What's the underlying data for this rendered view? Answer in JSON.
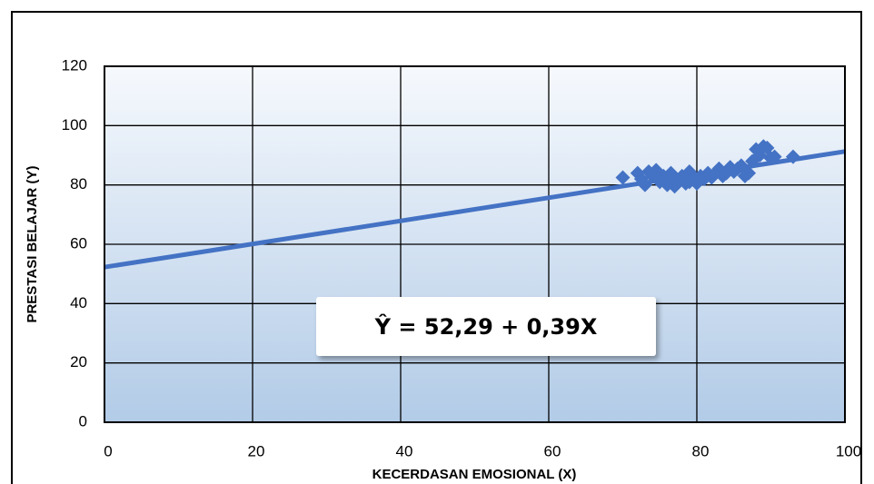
{
  "chart_data": {
    "type": "scatter",
    "xlabel": "KECERDASAN EMOSIONAL (X)",
    "ylabel": "PRESTASI BELAJAR (Y)",
    "annotation": "Ŷ  = 52,29 + 0,39X",
    "trendline": {
      "intercept": 52.29,
      "slope": 0.39
    },
    "color": "#4472c4",
    "grid": true,
    "xlim": [
      0,
      100
    ],
    "xticks": [
      0,
      20,
      40,
      60,
      80,
      100
    ],
    "ylim": [
      0,
      120
    ],
    "yticks": [
      0,
      20,
      40,
      60,
      80,
      100,
      120
    ],
    "x": [
      70,
      72,
      72.5,
      73,
      73.5,
      74,
      74.5,
      75,
      75.5,
      76,
      76.5,
      77,
      77,
      77.5,
      78,
      78.5,
      79,
      79,
      79.5,
      80,
      80.5,
      81,
      81.5,
      82,
      82.5,
      83,
      83.5,
      84,
      84.5,
      85,
      85.5,
      86,
      86.5,
      87,
      87.5,
      88,
      88.5,
      89,
      89.5,
      90,
      90.5,
      93
    ],
    "values": [
      82.5,
      84,
      82,
      80,
      84.5,
      83,
      85,
      81,
      83,
      80,
      84,
      82,
      79.5,
      81,
      83,
      80.5,
      84.5,
      81,
      82,
      80.5,
      83,
      82,
      84,
      82.5,
      84,
      85.5,
      83,
      84,
      86,
      84.5,
      85.5,
      86.5,
      83,
      84,
      88,
      92,
      90,
      93,
      92.5,
      89,
      89.5,
      89.5
    ]
  }
}
